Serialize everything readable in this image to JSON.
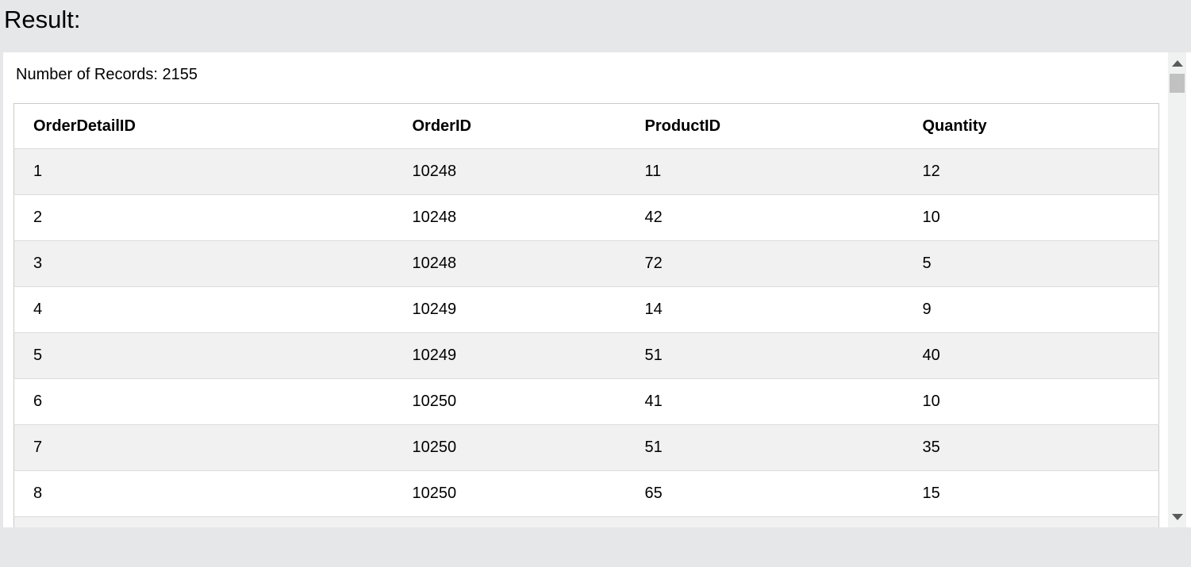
{
  "page": {
    "heading": "Result:"
  },
  "panel": {
    "records_text": "Number of Records: 2155"
  },
  "table": {
    "columns": [
      "OrderDetailID",
      "OrderID",
      "ProductID",
      "Quantity"
    ],
    "rows": [
      [
        "1",
        "10248",
        "11",
        "12"
      ],
      [
        "2",
        "10248",
        "42",
        "10"
      ],
      [
        "3",
        "10248",
        "72",
        "5"
      ],
      [
        "4",
        "10249",
        "14",
        "9"
      ],
      [
        "5",
        "10249",
        "51",
        "40"
      ],
      [
        "6",
        "10250",
        "41",
        "10"
      ],
      [
        "7",
        "10250",
        "51",
        "35"
      ],
      [
        "8",
        "10250",
        "65",
        "15"
      ],
      [
        "",
        "",
        "",
        ""
      ]
    ]
  },
  "scrollbar": {
    "up_icon": "up-arrow",
    "down_icon": "down-arrow"
  },
  "colors": {
    "page_background": "#e5e7e9",
    "panel_background": "#ffffff",
    "row_stripe": "#f1f1f1",
    "table_border": "#cbcbcb",
    "row_border": "#dcdcdc",
    "scrollbar_track": "#f0f1f1",
    "scrollbar_thumb": "#c1c1c1",
    "scrollbar_arrow": "#5a5a5a",
    "text": "#000000"
  }
}
